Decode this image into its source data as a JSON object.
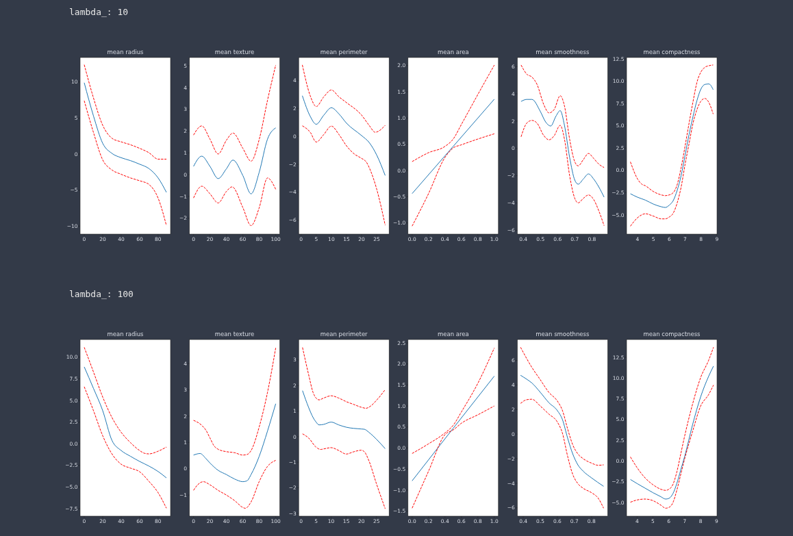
{
  "chart_data": [
    {
      "type": "other",
      "title": "lambda_: 10"
    },
    {
      "type": "line",
      "title": "mean radius",
      "xlim": [
        -4.45,
        93.45
      ],
      "ylim": [
        -11.1,
        13.4
      ],
      "xticks": [
        0,
        20,
        40,
        60,
        80
      ],
      "yticks": [
        -10,
        -5,
        0,
        5,
        10
      ],
      "series": [
        {
          "color": "#1f77b4",
          "line_style": "solid",
          "x": [
            0,
            10,
            20,
            30,
            40,
            50,
            60,
            70,
            80,
            89
          ],
          "values": [
            9.9,
            5.3,
            1.5,
            0.1,
            -0.5,
            -0.9,
            -1.4,
            -2.0,
            -3.3,
            -5.3
          ]
        },
        {
          "color": "#ff0000",
          "line_style": "dashed",
          "x": [
            0,
            10,
            20,
            30,
            40,
            50,
            60,
            70,
            80,
            89
          ],
          "values": [
            12.4,
            7.8,
            4.0,
            2.2,
            1.7,
            1.3,
            0.8,
            0.2,
            -0.7,
            -0.7
          ]
        },
        {
          "color": "#ff0000",
          "line_style": "dashed",
          "x": [
            0,
            10,
            20,
            30,
            40,
            50,
            60,
            70,
            80,
            89
          ],
          "values": [
            7.4,
            3.0,
            -0.8,
            -2.2,
            -2.8,
            -3.3,
            -3.7,
            -4.2,
            -6.1,
            -9.9
          ]
        }
      ]
    },
    {
      "type": "line",
      "title": "mean texture",
      "xlim": [
        -5,
        105
      ],
      "ylim": [
        -2.73,
        5.38
      ],
      "xticks": [
        0,
        20,
        40,
        60,
        80,
        100
      ],
      "yticks": [
        -2,
        -1,
        0,
        1,
        2,
        3,
        4,
        5
      ],
      "series": [
        {
          "color": "#1f77b4",
          "line_style": "solid",
          "x": [
            0,
            10,
            20,
            30,
            40,
            48,
            60,
            70,
            80,
            90,
            100
          ],
          "values": [
            0.38,
            0.85,
            0.38,
            -0.18,
            0.27,
            0.67,
            -0.04,
            -0.88,
            0.12,
            1.63,
            2.15
          ]
        },
        {
          "color": "#ff0000",
          "line_style": "dashed",
          "x": [
            0,
            10,
            20,
            30,
            40,
            48,
            60,
            70,
            80,
            90,
            100
          ],
          "values": [
            1.82,
            2.24,
            1.63,
            0.95,
            1.58,
            1.91,
            1.21,
            0.62,
            1.63,
            3.41,
            5.03
          ]
        },
        {
          "color": "#ff0000",
          "line_style": "dashed",
          "x": [
            0,
            10,
            20,
            30,
            40,
            47,
            60,
            70,
            80,
            90,
            100
          ],
          "values": [
            -1.07,
            -0.53,
            -0.88,
            -1.3,
            -0.77,
            -0.56,
            -1.51,
            -2.34,
            -1.51,
            -0.15,
            -0.67
          ]
        }
      ]
    },
    {
      "type": "line",
      "title": "mean perimeter",
      "xlim": [
        -0.8,
        29.1
      ],
      "ylim": [
        -6.99,
        5.63
      ],
      "xticks": [
        0,
        5,
        10,
        15,
        20,
        25
      ],
      "yticks": [
        -6,
        -4,
        -2,
        0,
        2,
        4
      ],
      "series": [
        {
          "color": "#1f77b4",
          "line_style": "solid",
          "x": [
            0.4,
            3,
            5,
            7.5,
            10,
            12.5,
            15,
            20,
            22.5,
            25,
            27.8
          ],
          "values": [
            2.9,
            1.43,
            0.86,
            1.51,
            2.04,
            1.6,
            0.94,
            0.05,
            -0.44,
            -1.34,
            -2.8
          ]
        },
        {
          "color": "#ff0000",
          "line_style": "dashed",
          "x": [
            0.4,
            3,
            5,
            7.5,
            10,
            12.5,
            15,
            20,
            22.5,
            24.5,
            27.8
          ],
          "values": [
            5.1,
            2.9,
            2.13,
            2.82,
            3.31,
            2.82,
            2.41,
            1.51,
            0.78,
            0.29,
            0.78
          ]
        },
        {
          "color": "#ff0000",
          "line_style": "dashed",
          "x": [
            0.4,
            3,
            5,
            7.5,
            10,
            12.5,
            15,
            17.5,
            20,
            21.5,
            23,
            25,
            27.8
          ],
          "values": [
            0.75,
            0.29,
            -0.41,
            0.13,
            0.73,
            0.13,
            -0.68,
            -1.25,
            -1.58,
            -1.82,
            -2.48,
            -3.78,
            -6.35
          ]
        }
      ]
    },
    {
      "type": "line",
      "title": "mean area",
      "xlim": [
        -0.05,
        1.05
      ],
      "ylim": [
        -1.213,
        2.155
      ],
      "xticks": [
        {
          "value": 0,
          "label": "0.0"
        },
        {
          "value": 0.2,
          "label": "0.2"
        },
        {
          "value": 0.4,
          "label": "0.4"
        },
        {
          "value": 0.6,
          "label": "0.6"
        },
        {
          "value": 0.8,
          "label": "0.8"
        },
        {
          "value": 1,
          "label": "1.0"
        }
      ],
      "yticks": [
        {
          "value": -1,
          "label": "−1.0"
        },
        {
          "value": -0.5,
          "label": "−0.5"
        },
        {
          "value": 0,
          "label": "0.0"
        },
        {
          "value": 0.5,
          "label": "0.5"
        },
        {
          "value": 1,
          "label": "1.0"
        },
        {
          "value": 1.5,
          "label": "1.5"
        },
        {
          "value": 2,
          "label": "2.0"
        }
      ],
      "series": [
        {
          "color": "#1f77b4",
          "line_style": "solid",
          "x": [
            0,
            0.5,
            1
          ],
          "values": [
            -0.44,
            0.46,
            1.36
          ]
        },
        {
          "color": "#ff0000",
          "line_style": "dashed",
          "x": [
            0,
            0.2,
            0.4,
            0.5,
            0.6,
            0.8,
            1
          ],
          "values": [
            0.17,
            0.34,
            0.46,
            0.6,
            0.88,
            1.45,
            2.01
          ]
        },
        {
          "color": "#ff0000",
          "line_style": "dashed",
          "x": [
            0,
            0.2,
            0.4,
            0.5,
            0.6,
            0.8,
            1
          ],
          "values": [
            -1.06,
            -0.44,
            0.25,
            0.43,
            0.49,
            0.6,
            0.7
          ]
        }
      ]
    },
    {
      "type": "line",
      "title": "mean smoothness",
      "xlim": [
        0.365,
        0.892
      ],
      "ylim": [
        -6.28,
        6.66
      ],
      "xticks": [
        0.4,
        0.5,
        0.6,
        0.7,
        0.8
      ],
      "yticks": [
        -6,
        -4,
        -2,
        0,
        2,
        4,
        6
      ],
      "series": [
        {
          "color": "#1f77b4",
          "line_style": "solid",
          "x": [
            0.387,
            0.42,
            0.45,
            0.5,
            0.53,
            0.56,
            0.59,
            0.615,
            0.64,
            0.67,
            0.7,
            0.72,
            0.75,
            0.78,
            0.81,
            0.84,
            0.871
          ],
          "values": [
            3.44,
            3.59,
            3.59,
            2.69,
            1.94,
            1.64,
            2.35,
            2.77,
            1.69,
            -0.65,
            -2.32,
            -2.62,
            -2.24,
            -1.87,
            -2.24,
            -2.82,
            -3.57
          ]
        },
        {
          "color": "#ff0000",
          "line_style": "dashed",
          "x": [
            0.387,
            0.42,
            0.45,
            0.48,
            0.52,
            0.55,
            0.58,
            0.615,
            0.64,
            0.67,
            0.7,
            0.72,
            0.75,
            0.78,
            0.81,
            0.84,
            0.871
          ],
          "values": [
            6.11,
            5.44,
            5.23,
            4.69,
            3.19,
            2.6,
            2.85,
            3.86,
            3.11,
            0.68,
            -0.98,
            -1.28,
            -0.82,
            -0.37,
            -0.73,
            -1.15,
            -1.4
          ]
        },
        {
          "color": "#ff0000",
          "line_style": "dashed",
          "x": [
            0.387,
            0.42,
            0.45,
            0.48,
            0.52,
            0.55,
            0.58,
            0.615,
            0.64,
            0.67,
            0.7,
            0.72,
            0.75,
            0.78,
            0.81,
            0.84,
            0.871
          ],
          "values": [
            0.85,
            1.85,
            2.05,
            1.85,
            0.93,
            0.63,
            0.93,
            1.69,
            0.68,
            -1.99,
            -3.66,
            -3.99,
            -3.66,
            -3.41,
            -3.74,
            -4.57,
            -5.66
          ]
        }
      ]
    },
    {
      "type": "line",
      "title": "mean compactness",
      "xlim": [
        3.31,
        9.01
      ],
      "ylim": [
        -7.16,
        12.66
      ],
      "xticks": [
        4,
        5,
        6,
        7,
        8,
        9
      ],
      "yticks": [
        {
          "value": -5,
          "label": "−5.0"
        },
        {
          "value": -2.5,
          "label": "−2.5"
        },
        {
          "value": 0,
          "label": "0.0"
        },
        {
          "value": 2.5,
          "label": "2.5"
        },
        {
          "value": 5,
          "label": "5.0"
        },
        {
          "value": 7.5,
          "label": "7.5"
        },
        {
          "value": 10,
          "label": "10.0"
        },
        {
          "value": 12.5,
          "label": "12.5"
        }
      ],
      "series": [
        {
          "color": "#1f77b4",
          "line_style": "solid",
          "x": [
            3.55,
            4,
            4.5,
            5,
            5.5,
            5.75,
            6,
            6.25,
            6.5,
            6.75,
            7,
            7.25,
            7.5,
            7.75,
            8,
            8.25,
            8.5,
            8.77
          ],
          "values": [
            -2.63,
            -3.02,
            -3.35,
            -3.79,
            -4.09,
            -4.17,
            -3.91,
            -3.4,
            -2.25,
            -0.59,
            1.71,
            4.02,
            6.06,
            7.85,
            9.13,
            9.64,
            9.69,
            9.05
          ]
        },
        {
          "color": "#ff0000",
          "line_style": "dashed",
          "x": [
            3.55,
            4,
            4.25,
            4.5,
            5,
            5.5,
            5.75,
            6,
            6.25,
            6.5,
            6.75,
            7,
            7.25,
            7.5,
            7.75,
            8,
            8.25,
            8.5,
            8.77
          ],
          "values": [
            0.95,
            -0.97,
            -1.53,
            -1.74,
            -2.38,
            -2.76,
            -2.84,
            -2.76,
            -2.51,
            -1.61,
            0.31,
            2.74,
            5.29,
            7.72,
            9.9,
            11.05,
            11.56,
            11.74,
            11.82
          ]
        },
        {
          "color": "#ff0000",
          "line_style": "dashed",
          "x": [
            3.55,
            4,
            4.5,
            5,
            5.5,
            5.75,
            6,
            6.25,
            6.5,
            6.75,
            7,
            7.25,
            7.5,
            7.75,
            8,
            8.25,
            8.5,
            8.77
          ],
          "values": [
            -6.27,
            -5.32,
            -4.88,
            -5.14,
            -5.45,
            -5.45,
            -5.24,
            -4.81,
            -3.66,
            -1.87,
            0.69,
            3.0,
            5.29,
            6.83,
            7.77,
            8.06,
            7.6,
            6.32
          ]
        }
      ]
    },
    {
      "type": "other",
      "title": "lambda_: 100"
    },
    {
      "type": "line",
      "title": "mean radius",
      "xlim": [
        -4.45,
        93.45
      ],
      "ylim": [
        -8.37,
        12.03
      ],
      "xticks": [
        0,
        20,
        40,
        60,
        80
      ],
      "yticks": [
        {
          "value": -7.5,
          "label": "−7.5"
        },
        {
          "value": -5,
          "label": "−5.0"
        },
        {
          "value": -2.5,
          "label": "−2.5"
        },
        {
          "value": 0,
          "label": "0.0"
        },
        {
          "value": 2.5,
          "label": "2.5"
        },
        {
          "value": 5,
          "label": "5.0"
        },
        {
          "value": 7.5,
          "label": "7.5"
        },
        {
          "value": 10,
          "label": "10.0"
        }
      ],
      "series": [
        {
          "color": "#1f77b4",
          "line_style": "solid",
          "x": [
            0,
            10,
            20,
            30,
            40,
            50,
            60,
            70,
            80,
            89
          ],
          "values": [
            8.87,
            6.39,
            3.82,
            0.39,
            -0.79,
            -1.45,
            -2.05,
            -2.58,
            -3.21,
            -3.95
          ]
        },
        {
          "color": "#ff0000",
          "line_style": "dashed",
          "x": [
            0,
            10,
            20,
            30,
            40,
            50,
            60,
            65,
            70,
            80,
            89
          ],
          "values": [
            11.13,
            8.29,
            5.39,
            3.03,
            1.32,
            0.13,
            -0.79,
            -1.1,
            -1.18,
            -0.87,
            -0.39
          ]
        },
        {
          "color": "#ff0000",
          "line_style": "dashed",
          "x": [
            0,
            10,
            20,
            30,
            40,
            50,
            60,
            70,
            80,
            89
          ],
          "values": [
            6.58,
            3.82,
            0.92,
            -1.18,
            -2.37,
            -2.82,
            -3.24,
            -4.34,
            -5.66,
            -7.45
          ]
        }
      ]
    },
    {
      "type": "line",
      "title": "mean texture",
      "xlim": [
        -5,
        105
      ],
      "ylim": [
        -1.8,
        4.91
      ],
      "xticks": [
        0,
        20,
        40,
        60,
        80,
        100
      ],
      "yticks": [
        -1,
        0,
        1,
        2,
        3,
        4
      ],
      "series": [
        {
          "color": "#1f77b4",
          "line_style": "solid",
          "x": [
            0,
            8,
            15,
            20,
            30,
            40,
            50,
            60,
            65,
            70,
            80,
            90,
            100
          ],
          "values": [
            0.52,
            0.58,
            0.39,
            0.22,
            -0.06,
            -0.22,
            -0.39,
            -0.49,
            -0.46,
            -0.22,
            0.48,
            1.43,
            2.47
          ]
        },
        {
          "color": "#ff0000",
          "line_style": "dashed",
          "x": [
            0,
            10,
            15,
            20,
            25,
            30,
            40,
            50,
            60,
            65,
            70,
            80,
            90,
            100
          ],
          "values": [
            1.84,
            1.65,
            1.47,
            1.17,
            0.87,
            0.74,
            0.65,
            0.61,
            0.52,
            0.54,
            0.69,
            1.6,
            2.9,
            4.59
          ]
        },
        {
          "color": "#ff0000",
          "line_style": "dashed",
          "x": [
            0,
            5,
            12,
            20,
            30,
            40,
            50,
            60,
            63,
            70,
            80,
            90,
            100
          ],
          "values": [
            -0.82,
            -0.61,
            -0.49,
            -0.61,
            -0.82,
            -1.0,
            -1.21,
            -1.47,
            -1.5,
            -1.26,
            -0.48,
            0.09,
            0.32
          ]
        }
      ]
    },
    {
      "type": "line",
      "title": "mean perimeter",
      "xlim": [
        -0.76,
        29.2
      ],
      "ylim": [
        -3.11,
        3.8
      ],
      "xticks": [
        0,
        5,
        10,
        15,
        20,
        25
      ],
      "yticks": [
        -3,
        -2,
        -1,
        0,
        1,
        2,
        3
      ],
      "series": [
        {
          "color": "#1f77b4",
          "line_style": "solid",
          "x": [
            0.5,
            2.5,
            4,
            5,
            6,
            7.5,
            10,
            12.5,
            15,
            20,
            21,
            22.5,
            25,
            27.9
          ],
          "values": [
            1.8,
            1.15,
            0.75,
            0.57,
            0.46,
            0.48,
            0.57,
            0.46,
            0.37,
            0.3,
            0.29,
            0.17,
            -0.1,
            -0.47
          ]
        },
        {
          "color": "#ff0000",
          "line_style": "dashed",
          "x": [
            0.5,
            2.5,
            4,
            5,
            6,
            7.5,
            10,
            12.5,
            15,
            17.5,
            20,
            21.5,
            23,
            25,
            27.9
          ],
          "values": [
            3.49,
            2.44,
            1.73,
            1.51,
            1.44,
            1.51,
            1.6,
            1.51,
            1.37,
            1.26,
            1.15,
            1.11,
            1.19,
            1.42,
            1.84
          ]
        },
        {
          "color": "#ff0000",
          "line_style": "dashed",
          "x": [
            0.5,
            2.5,
            5,
            6.5,
            7.5,
            10,
            12.5,
            15,
            17.5,
            20,
            21,
            22.5,
            25,
            27.9
          ],
          "values": [
            0.11,
            -0.05,
            -0.41,
            -0.5,
            -0.48,
            -0.43,
            -0.54,
            -0.68,
            -0.59,
            -0.53,
            -0.59,
            -0.94,
            -1.84,
            -2.82
          ]
        }
      ]
    },
    {
      "type": "line",
      "title": "mean area",
      "xlim": [
        -0.05,
        1.05
      ],
      "ylim": [
        -1.62,
        2.58
      ],
      "xticks": [
        {
          "value": 0,
          "label": "0.0"
        },
        {
          "value": 0.2,
          "label": "0.2"
        },
        {
          "value": 0.4,
          "label": "0.4"
        },
        {
          "value": 0.6,
          "label": "0.6"
        },
        {
          "value": 0.8,
          "label": "0.8"
        },
        {
          "value": 1,
          "label": "1.0"
        }
      ],
      "yticks": [
        {
          "value": -1.5,
          "label": "−1.5"
        },
        {
          "value": -1,
          "label": "−1.0"
        },
        {
          "value": -0.5,
          "label": "−0.5"
        },
        {
          "value": 0,
          "label": "0.0"
        },
        {
          "value": 0.5,
          "label": "0.5"
        },
        {
          "value": 1,
          "label": "1.0"
        },
        {
          "value": 1.5,
          "label": "1.5"
        },
        {
          "value": 2,
          "label": "2.0"
        },
        {
          "value": 2.5,
          "label": "2.5"
        }
      ],
      "series": [
        {
          "color": "#1f77b4",
          "line_style": "solid",
          "x": [
            0,
            0.5,
            1
          ],
          "values": [
            -0.78,
            0.47,
            1.71
          ]
        },
        {
          "color": "#ff0000",
          "line_style": "dashed",
          "x": [
            0,
            0.2,
            0.4,
            0.5,
            0.6,
            0.8,
            1
          ],
          "values": [
            -0.13,
            0.1,
            0.36,
            0.54,
            0.86,
            1.54,
            2.38
          ]
        },
        {
          "color": "#ff0000",
          "line_style": "dashed",
          "x": [
            0,
            0.2,
            0.4,
            0.5,
            0.6,
            0.8,
            1
          ],
          "values": [
            -1.43,
            -0.55,
            0.32,
            0.43,
            0.59,
            0.79,
            1.0
          ]
        }
      ]
    },
    {
      "type": "line",
      "title": "mean smoothness",
      "xlim": [
        0.365,
        0.895
      ],
      "ylim": [
        -6.68,
        7.7
      ],
      "xticks": [
        0.4,
        0.5,
        0.6,
        0.7,
        0.8
      ],
      "yticks": [
        -6,
        -4,
        -2,
        0,
        2,
        4,
        6
      ],
      "series": [
        {
          "color": "#1f77b4",
          "line_style": "solid",
          "x": [
            0.384,
            0.42,
            0.45,
            0.5,
            0.55,
            0.6,
            0.63,
            0.66,
            0.69,
            0.72,
            0.75,
            0.8,
            0.871
          ],
          "values": [
            4.79,
            4.47,
            4.17,
            3.4,
            2.56,
            1.91,
            1.17,
            -0.32,
            -1.61,
            -2.5,
            -3.0,
            -3.56,
            -4.25
          ]
        },
        {
          "color": "#ff0000",
          "line_style": "dashed",
          "x": [
            0.384,
            0.45,
            0.5,
            0.55,
            0.6,
            0.63,
            0.66,
            0.69,
            0.72,
            0.75,
            0.8,
            0.84,
            0.871
          ],
          "values": [
            7.07,
            5.44,
            4.42,
            3.4,
            2.69,
            1.91,
            0.43,
            -0.87,
            -1.61,
            -1.99,
            -2.36,
            -2.54,
            -2.5
          ]
        },
        {
          "color": "#ff0000",
          "line_style": "dashed",
          "x": [
            0.384,
            0.42,
            0.45,
            0.5,
            0.55,
            0.6,
            0.63,
            0.66,
            0.69,
            0.72,
            0.75,
            0.8,
            0.84,
            0.871
          ],
          "values": [
            2.5,
            2.8,
            2.84,
            2.28,
            1.63,
            0.98,
            0.06,
            -1.8,
            -3.28,
            -4.03,
            -4.4,
            -4.77,
            -5.23,
            -6.03
          ]
        }
      ]
    },
    {
      "type": "line",
      "title": "mean compactness",
      "xlim": [
        3.34,
        9.03
      ],
      "ylim": [
        -6.65,
        14.64
      ],
      "xticks": [
        4,
        5,
        6,
        7,
        8,
        9
      ],
      "yticks": [
        {
          "value": -5,
          "label": "−5.0"
        },
        {
          "value": -2.5,
          "label": "−2.5"
        },
        {
          "value": 0,
          "label": "0.0"
        },
        {
          "value": 2.5,
          "label": "2.5"
        },
        {
          "value": 5,
          "label": "5.0"
        },
        {
          "value": 7.5,
          "label": "7.5"
        },
        {
          "value": 10,
          "label": "10.0"
        },
        {
          "value": 12.5,
          "label": "12.5"
        }
      ],
      "series": [
        {
          "color": "#1f77b4",
          "line_style": "solid",
          "x": [
            3.58,
            4,
            4.5,
            5,
            5.5,
            5.8,
            6,
            6.25,
            6.5,
            6.75,
            7,
            7.5,
            8,
            8.5,
            8.81
          ],
          "values": [
            -2.23,
            -2.72,
            -3.27,
            -3.82,
            -4.31,
            -4.59,
            -4.51,
            -3.96,
            -2.72,
            -1.07,
            0.58,
            4.42,
            7.72,
            10.19,
            11.43
          ]
        },
        {
          "color": "#ff0000",
          "line_style": "dashed",
          "x": [
            3.58,
            4,
            4.5,
            5,
            5.5,
            5.8,
            6,
            6.25,
            6.5,
            6.75,
            7,
            7.5,
            8,
            8.5,
            8.81
          ],
          "values": [
            0.49,
            -0.8,
            -2.03,
            -2.86,
            -3.41,
            -3.54,
            -3.41,
            -2.86,
            -1.35,
            0.85,
            3.05,
            6.9,
            10.05,
            12.12,
            13.71
          ]
        },
        {
          "color": "#ff0000",
          "line_style": "dashed",
          "x": [
            3.58,
            4,
            4.5,
            5,
            5.5,
            5.8,
            6,
            6.25,
            6.5,
            6.75,
            7,
            7.5,
            8,
            8.5,
            8.81
          ],
          "values": [
            -4.97,
            -4.7,
            -4.59,
            -4.78,
            -5.33,
            -5.69,
            -5.6,
            -5.05,
            -3.54,
            -1.62,
            0.3,
            3.6,
            6.62,
            8.0,
            9.15
          ]
        }
      ]
    }
  ]
}
